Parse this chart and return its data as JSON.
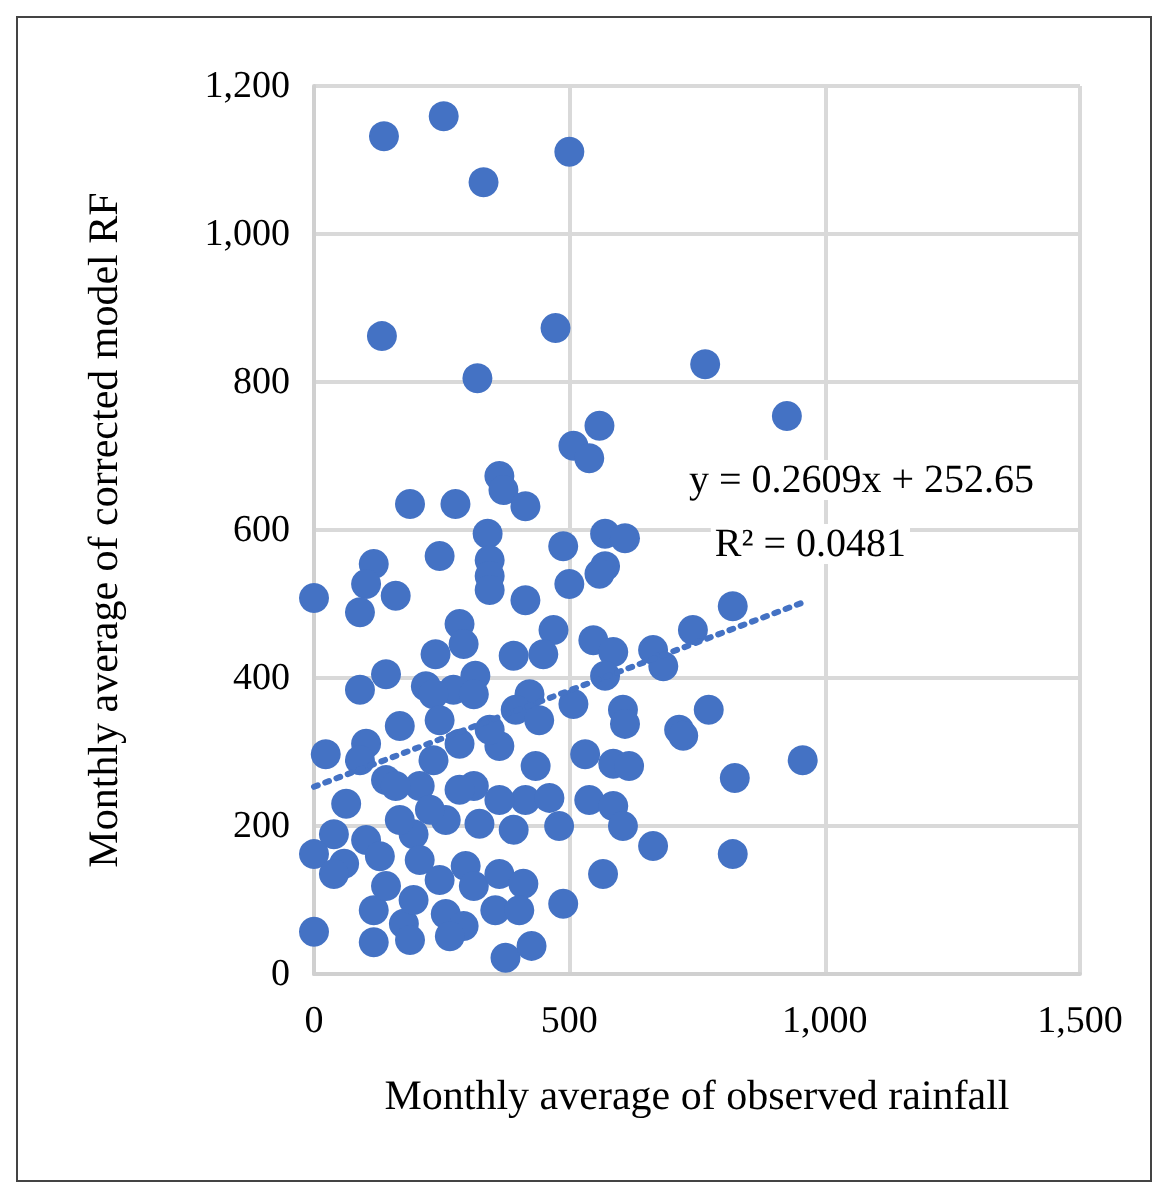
{
  "chart_data": {
    "type": "scatter",
    "xlabel": "Monthly average of observed rainfall",
    "ylabel": "Monthly average of corrected model RF",
    "xlim": [
      0,
      1500
    ],
    "xticks": [
      0,
      500,
      {
        "value": 1000,
        "label": "1,000"
      },
      {
        "value": 1500,
        "label": "1,500"
      }
    ],
    "ylim": [
      0,
      1200
    ],
    "yticks": [
      0,
      200,
      400,
      600,
      800,
      {
        "value": 1000,
        "label": "1,000"
      },
      {
        "value": 1200,
        "label": "1,200"
      }
    ],
    "grid": true,
    "marker": "circle",
    "annotations": [
      "y = 0.2609x + 252.65",
      "R² = 0.0481"
    ],
    "series": [
      {
        "color": "#4472c4",
        "x": [
          137,
          254,
          332,
          500,
          133,
          473,
          320,
          766,
          926,
          559,
          508,
          539,
          363,
          371,
          188,
          277,
          414,
          340,
          570,
          609,
          488,
          246,
          117,
          344,
          570,
          559,
          344,
          344,
          102,
          500,
          0,
          160,
          414,
          90,
          820,
          285,
          469,
          742,
          293,
          547,
          586,
          664,
          238,
          449,
          391,
          684,
          141,
          570,
          90,
          219,
          316,
          273,
          508,
          422,
          605,
          773,
          715,
          23,
          102,
          168,
          234,
          313,
          395,
          609,
          723,
          824,
          957,
          531,
          586,
          617,
          434,
          363,
          285,
          234,
          141,
          313,
          207,
          414,
          461,
          539,
          586,
          63,
          39,
          102,
          195,
          258,
          324,
          391,
          480,
          605,
          664,
          820,
          0,
          59,
          39,
          129,
          207,
          246,
          297,
          313,
          363,
          410,
          566,
          117,
          176,
          258,
          293,
          355,
          402,
          488,
          0,
          117,
          188,
          266,
          375,
          426,
          195,
          141,
          90,
          160,
          246,
          344,
          285,
          363,
          227,
          441,
          168
        ],
        "values": [
          1132,
          1159,
          1070,
          1111,
          862,
          873,
          805,
          824,
          754,
          741,
          714,
          697,
          673,
          654,
          635,
          635,
          632,
          595,
          595,
          589,
          578,
          565,
          554,
          559,
          551,
          541,
          538,
          519,
          527,
          527,
          508,
          511,
          505,
          489,
          497,
          473,
          465,
          465,
          446,
          451,
          435,
          438,
          432,
          432,
          430,
          416,
          405,
          403,
          384,
          389,
          403,
          384,
          365,
          378,
          357,
          357,
          330,
          297,
          311,
          335,
          378,
          378,
          357,
          338,
          322,
          265,
          289,
          297,
          284,
          281,
          281,
          308,
          311,
          289,
          262,
          254,
          254,
          235,
          238,
          235,
          227,
          230,
          189,
          181,
          189,
          208,
          203,
          195,
          200,
          200,
          173,
          162,
          162,
          149,
          135,
          159,
          154,
          127,
          146,
          119,
          135,
          122,
          135,
          86,
          68,
          81,
          65,
          86,
          86,
          95,
          57,
          43,
          46,
          51,
          22,
          38,
          100,
          119,
          289,
          254,
          343,
          330,
          249,
          235,
          222,
          343,
          208
        ]
      },
      {
        "type": "line",
        "color": "#4472c4",
        "marker": "none",
        "line_style": "dotted",
        "x": [
          0,
          957
        ],
        "values": [
          253,
          502
        ]
      }
    ]
  }
}
